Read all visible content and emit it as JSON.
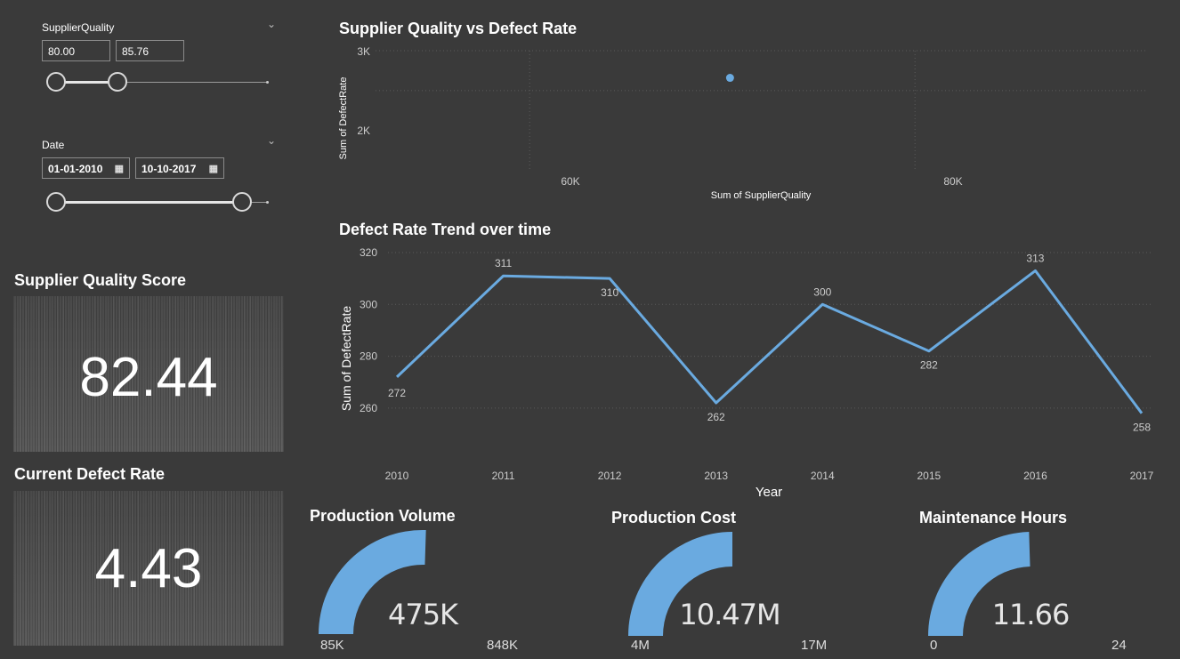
{
  "slicers": {
    "supplier_quality": {
      "title": "SupplierQuality",
      "min_value": "80.00",
      "max_value": "85.76"
    },
    "date": {
      "title": "Date",
      "start": "01-01-2010",
      "end": "10-10-2017"
    }
  },
  "cards": {
    "supplier_quality_score": {
      "title": "Supplier Quality Score",
      "value": "82.44"
    },
    "current_defect_rate": {
      "title": "Current Defect Rate",
      "value": "4.43"
    }
  },
  "gauges": [
    {
      "title": "Production Volume",
      "value": "475K",
      "min": "85K",
      "max": "848K",
      "fraction": 0.51
    },
    {
      "title": "Production Cost",
      "value": "10.47M",
      "min": "4M",
      "max": "17M",
      "fraction": 0.5
    },
    {
      "title": "Maintenance Hours",
      "value": "11.66",
      "min": "0",
      "max": "24",
      "fraction": 0.49
    }
  ],
  "colors": {
    "accent": "#6aaae0",
    "background": "#3a3a3a"
  },
  "chart_data": [
    {
      "type": "scatter",
      "title": "Supplier Quality vs Defect Rate",
      "xlabel": "Sum of SupplierQuality",
      "ylabel": "Sum of DefectRate",
      "x_ticks": [
        "60K",
        "80K"
      ],
      "y_ticks": [
        "3K",
        "2K"
      ],
      "points": [
        {
          "x": 70400,
          "y": 2320
        }
      ],
      "xlim": [
        52000,
        92000
      ],
      "ylim": [
        1000,
        3000
      ],
      "grid": true
    },
    {
      "type": "line",
      "title": "Defect Rate Trend over time",
      "xlabel": "Year",
      "ylabel": "Sum of DefectRate",
      "categories": [
        "2010",
        "2011",
        "2012",
        "2013",
        "2014",
        "2015",
        "2016",
        "2017"
      ],
      "values": [
        272,
        311,
        310,
        262,
        300,
        282,
        313,
        258
      ],
      "data_labels": [
        "272",
        "311",
        "310",
        "262",
        "300",
        "282",
        "313",
        "258"
      ],
      "y_ticks": [
        "320",
        "300",
        "280",
        "260"
      ],
      "ylim": [
        250,
        320
      ],
      "grid": true
    }
  ]
}
